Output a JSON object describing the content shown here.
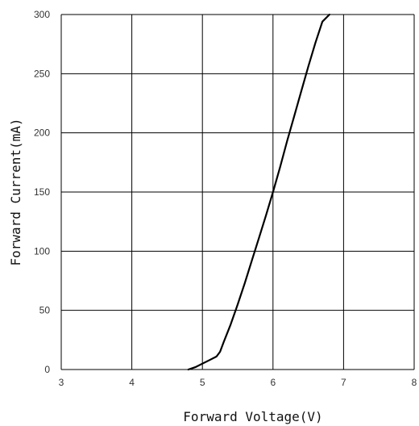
{
  "chart_data": {
    "type": "line",
    "title": "",
    "xlabel": "Forward Voltage(V)",
    "ylabel": "Forward Current(mA)",
    "xlim": [
      3,
      8
    ],
    "ylim": [
      0,
      300
    ],
    "x_ticks": [
      3,
      4,
      5,
      6,
      7,
      8
    ],
    "y_ticks": [
      0,
      50,
      100,
      150,
      200,
      250,
      300
    ],
    "grid": true,
    "legend": "none",
    "line_color": "#000000",
    "grid_color": "#000000",
    "series": [
      {
        "x": [
          4.8,
          4.9,
          5.0,
          5.1,
          5.2,
          5.25,
          5.3,
          5.4,
          5.5,
          5.6,
          5.7,
          5.8,
          5.9,
          6.0,
          6.1,
          6.2,
          6.3,
          6.4,
          6.5,
          6.6,
          6.7,
          6.8
        ],
        "y": [
          0,
          2,
          5,
          8,
          11,
          15,
          23,
          38,
          55,
          73,
          92,
          111,
          130,
          150,
          171,
          193,
          214,
          235,
          256,
          276,
          294,
          300
        ]
      }
    ]
  }
}
